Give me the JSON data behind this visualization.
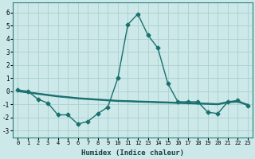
{
  "xlabel": "Humidex (Indice chaleur)",
  "xlim": [
    -0.5,
    23.5
  ],
  "ylim": [
    -3.5,
    6.8
  ],
  "yticks": [
    -3,
    -2,
    -1,
    0,
    1,
    2,
    3,
    4,
    5,
    6
  ],
  "xticks": [
    0,
    1,
    2,
    3,
    4,
    5,
    6,
    7,
    8,
    9,
    10,
    11,
    12,
    13,
    14,
    15,
    16,
    17,
    18,
    19,
    20,
    21,
    22,
    23
  ],
  "background_color": "#cce8e8",
  "grid_color": "#aad0d0",
  "line_color": "#1a7070",
  "main_series": {
    "x": [
      0,
      1,
      2,
      3,
      4,
      5,
      6,
      7,
      8,
      9,
      10,
      11,
      12,
      13,
      14,
      15,
      16,
      17,
      18,
      19,
      20,
      21,
      22,
      23
    ],
    "y": [
      0.1,
      0.0,
      -0.6,
      -0.9,
      -1.8,
      -1.8,
      -2.5,
      -2.3,
      -1.7,
      -1.2,
      1.0,
      5.1,
      5.9,
      4.3,
      3.3,
      0.6,
      -0.8,
      -0.8,
      -0.8,
      -1.6,
      -1.7,
      -0.8,
      -0.7,
      -1.1
    ],
    "marker": "D",
    "markersize": 2.5,
    "linewidth": 1.0
  },
  "flat_series": [
    {
      "x": [
        0,
        1,
        2,
        3,
        4,
        5,
        6,
        7,
        8,
        9,
        10,
        11,
        12,
        13,
        14,
        15,
        16,
        17,
        18,
        19,
        20,
        21,
        22,
        23
      ],
      "y": [
        0.05,
        -0.05,
        -0.15,
        -0.25,
        -0.35,
        -0.42,
        -0.5,
        -0.55,
        -0.6,
        -0.65,
        -0.7,
        -0.72,
        -0.75,
        -0.77,
        -0.8,
        -0.82,
        -0.85,
        -0.87,
        -0.9,
        -0.92,
        -0.95,
        -0.8,
        -0.75,
        -1.0
      ],
      "linewidth": 0.9
    },
    {
      "x": [
        0,
        1,
        2,
        3,
        4,
        5,
        6,
        7,
        8,
        9,
        10,
        11,
        12,
        13,
        14,
        15,
        16,
        17,
        18,
        19,
        20,
        21,
        22,
        23
      ],
      "y": [
        0.02,
        -0.08,
        -0.18,
        -0.28,
        -0.38,
        -0.45,
        -0.53,
        -0.58,
        -0.63,
        -0.68,
        -0.73,
        -0.75,
        -0.78,
        -0.8,
        -0.83,
        -0.85,
        -0.88,
        -0.9,
        -0.93,
        -0.95,
        -0.98,
        -0.83,
        -0.78,
        -1.03
      ],
      "linewidth": 0.9
    },
    {
      "x": [
        0,
        1,
        2,
        3,
        4,
        5,
        6,
        7,
        8,
        9,
        10,
        11,
        12,
        13,
        14,
        15,
        16,
        17,
        18,
        19,
        20,
        21,
        22,
        23
      ],
      "y": [
        -0.02,
        -0.12,
        -0.22,
        -0.32,
        -0.42,
        -0.49,
        -0.57,
        -0.62,
        -0.67,
        -0.72,
        -0.77,
        -0.79,
        -0.82,
        -0.84,
        -0.87,
        -0.89,
        -0.92,
        -0.94,
        -0.97,
        -0.99,
        -1.02,
        -0.87,
        -0.82,
        -1.07
      ],
      "linewidth": 0.9
    }
  ]
}
